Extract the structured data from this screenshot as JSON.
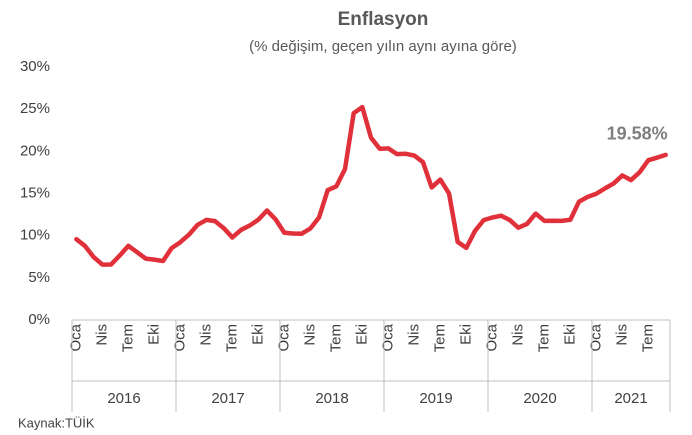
{
  "chart_data": {
    "type": "line",
    "title": "Enflasyon",
    "subtitle": "(% değişim, geçen yılın aynı ayına göre)",
    "source": "Kaynak:TÜİK",
    "categories": [
      "Oca",
      null,
      null,
      "Nis",
      null,
      null,
      "Tem",
      null,
      null,
      "Eki",
      null,
      null,
      "Oca",
      null,
      null,
      "Nis",
      null,
      null,
      "Tem",
      null,
      null,
      "Eki",
      null,
      null,
      "Oca",
      null,
      null,
      "Nis",
      null,
      null,
      "Tem",
      null,
      null,
      "Eki",
      null,
      null,
      "Oca",
      null,
      null,
      "Nis",
      null,
      null,
      "Tem",
      null,
      null,
      "Eki",
      null,
      null,
      "Oca",
      null,
      null,
      "Nis",
      null,
      null,
      "Tem",
      null,
      null,
      "Eki",
      null,
      null,
      "Oca",
      null,
      null,
      "Nis",
      null,
      null,
      "Tem",
      null,
      null
    ],
    "x_groups": [
      "2016",
      "2017",
      "2018",
      "2019",
      "2020",
      "2021"
    ],
    "values": [
      9.58,
      8.78,
      7.46,
      6.57,
      6.58,
      7.64,
      8.79,
      8.05,
      7.28,
      7.16,
      7.0,
      8.53,
      9.22,
      10.13,
      11.29,
      11.87,
      11.72,
      10.9,
      9.79,
      10.68,
      11.2,
      11.9,
      12.98,
      11.92,
      10.35,
      10.26,
      10.23,
      10.85,
      12.15,
      15.39,
      15.85,
      17.9,
      24.52,
      25.24,
      21.62,
      20.3,
      20.35,
      19.67,
      19.71,
      19.5,
      18.71,
      15.72,
      16.65,
      15.01,
      9.26,
      8.55,
      10.56,
      11.84,
      12.15,
      12.37,
      11.86,
      10.94,
      11.39,
      12.62,
      11.76,
      11.77,
      11.75,
      11.89,
      14.03,
      14.6,
      14.97,
      15.61,
      16.19,
      17.14,
      16.59,
      17.53,
      18.95,
      19.25,
      19.58
    ],
    "value_labels": [
      null,
      null,
      null,
      null,
      null,
      null,
      null,
      null,
      null,
      null,
      null,
      null,
      null,
      null,
      null,
      null,
      null,
      null,
      null,
      null,
      null,
      null,
      null,
      null,
      null,
      null,
      null,
      null,
      null,
      null,
      null,
      null,
      null,
      null,
      null,
      null,
      null,
      null,
      null,
      null,
      null,
      null,
      null,
      null,
      null,
      null,
      null,
      null,
      null,
      null,
      null,
      null,
      null,
      null,
      null,
      null,
      null,
      null,
      null,
      null,
      null,
      null,
      null,
      null,
      null,
      null,
      null,
      null,
      "19.58%"
    ],
    "color": "#e0303a",
    "ylim": [
      0,
      30
    ],
    "yticks": [
      {
        "value": 0,
        "label": "0%"
      },
      {
        "value": 5,
        "label": "5%"
      },
      {
        "value": 10,
        "label": "10%"
      },
      {
        "value": 15,
        "label": "15%"
      },
      {
        "value": 20,
        "label": "20%"
      },
      {
        "value": 25,
        "label": "25%"
      },
      {
        "value": 30,
        "label": "30%"
      }
    ],
    "grid": false
  }
}
